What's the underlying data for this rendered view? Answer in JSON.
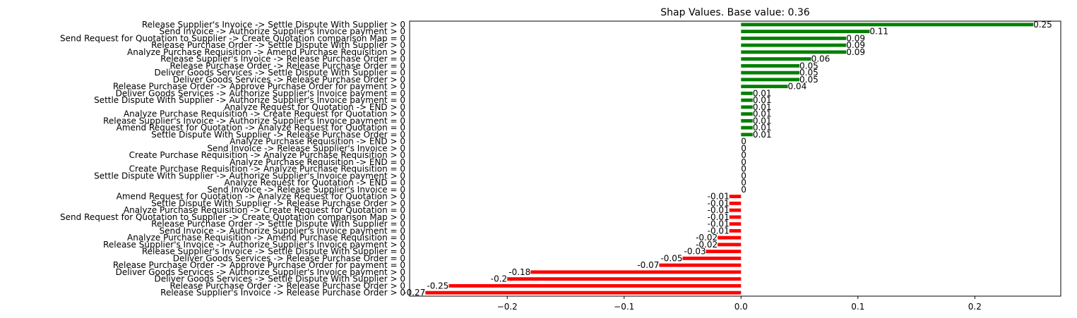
{
  "chart_data": {
    "type": "bar",
    "orientation": "horizontal",
    "title": "Shap Values. Base value: 0.36",
    "xlabel": "",
    "ylabel": "",
    "xlim": [
      -0.2835,
      0.2735
    ],
    "xticks": [
      -0.2,
      -0.1,
      0.0,
      0.1,
      0.2
    ],
    "xtick_labels": [
      "−0.2",
      "−0.1",
      "0.0",
      "0.1",
      "0.2"
    ],
    "grid": false,
    "colors": {
      "positive": "#008000",
      "negative": "#ff0000"
    },
    "categories": [
      "Release Supplier's Invoice -> Settle Dispute With Supplier > 0",
      "Send Invoice -> Authorize Supplier's Invoice payment > 0",
      "Send Request for Quotation to Supplier -> Create Quotation comparison Map = 0",
      "Release Purchase Order -> Settle Dispute With Supplier > 0",
      "Analyze Purchase Requisition -> Amend Purchase Requisition > 0",
      "Release Supplier's Invoice -> Release Purchase Order = 0",
      "Release Purchase Order -> Release Purchase Order = 0",
      "Deliver Goods Services -> Settle Dispute With Supplier = 0",
      "Deliver Goods Services -> Release Purchase Order > 0",
      "Release Purchase Order -> Approve Purchase Order for payment > 0",
      "Deliver Goods Services -> Authorize Supplier's Invoice payment = 0",
      "Settle Dispute With Supplier -> Authorize Supplier's Invoice payment = 0",
      "Analyze Request for Quotation -> END > 0",
      "Analyze Purchase Requisition -> Create Request for Quotation > 0",
      "Release Supplier's Invoice -> Authorize Supplier's Invoice payment = 0",
      "Amend Request for Quotation -> Analyze Request for Quotation = 0",
      "Settle Dispute With Supplier -> Release Purchase Order = 0",
      "Analyze Purchase Requisition -> END > 0",
      "Send Invoice -> Release Supplier's Invoice > 0",
      "Create Purchase Requisition -> Analyze Purchase Requisition > 0",
      "Analyze Purchase Requisition -> END = 0",
      "Create Purchase Requisition -> Analyze Purchase Requisition = 0",
      "Settle Dispute With Supplier -> Authorize Supplier's Invoice payment > 0",
      "Analyze Request for Quotation -> END = 0",
      "Send Invoice -> Release Supplier's Invoice = 0",
      "Amend Request for Quotation -> Analyze Request for Quotation > 0",
      "Settle Dispute With Supplier -> Release Purchase Order > 0",
      "Analyze Purchase Requisition -> Create Request for Quotation = 0",
      "Send Request for Quotation to Supplier -> Create Quotation comparison Map > 0",
      "Release Purchase Order -> Settle Dispute With Supplier = 0",
      "Send Invoice -> Authorize Supplier's Invoice payment = 0",
      "Analyze Purchase Requisition -> Amend Purchase Requisition = 0",
      "Release Supplier's Invoice -> Authorize Supplier's Invoice payment > 0",
      "Release Supplier's Invoice -> Settle Dispute With Supplier = 0",
      "Deliver Goods Services -> Release Purchase Order = 0",
      "Release Purchase Order -> Approve Purchase Order for payment = 0",
      "Deliver Goods Services -> Authorize Supplier's Invoice payment > 0",
      "Deliver Goods Services -> Settle Dispute With Supplier > 0",
      "Release Purchase Order -> Release Purchase Order > 0",
      "Release Supplier's Invoice -> Release Purchase Order > 0"
    ],
    "values": [
      0.25,
      0.11,
      0.09,
      0.09,
      0.09,
      0.06,
      0.05,
      0.05,
      0.05,
      0.04,
      0.01,
      0.01,
      0.01,
      0.01,
      0.01,
      0.01,
      0.01,
      0,
      0,
      0,
      0,
      0,
      0,
      0,
      0,
      -0.01,
      -0.01,
      -0.01,
      -0.01,
      -0.01,
      -0.01,
      -0.02,
      -0.02,
      -0.03,
      -0.05,
      -0.07,
      -0.18,
      -0.2,
      -0.25,
      -0.27
    ],
    "data_labels": [
      "0.25",
      "0.11",
      "0.09",
      "0.09",
      "0.09",
      "0.06",
      "0.05",
      "0.05",
      "0.05",
      "0.04",
      "0.01",
      "0.01",
      "0.01",
      "0.01",
      "0.01",
      "0.01",
      "0.01",
      "0",
      "0",
      "0",
      "0",
      "0",
      "0",
      "0",
      "0",
      "-0.01",
      "-0.01",
      "-0.01",
      "-0.01",
      "-0.01",
      "-0.01",
      "-0.02",
      "-0.02",
      "-0.03",
      "-0.05",
      "-0.07",
      "-0.18",
      "-0.2",
      "-0.25",
      "-0.27"
    ]
  }
}
